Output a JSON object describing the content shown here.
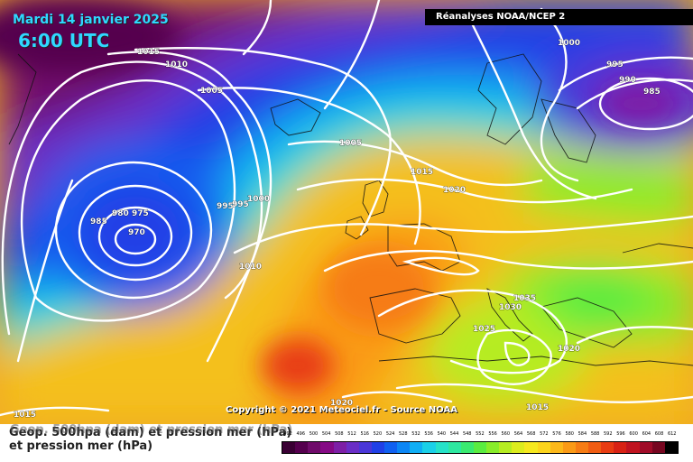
{
  "header": {
    "date": "Mardi 14 janvier 2025",
    "time": "6:00 UTC",
    "source": "Réanalyses NOAA/NCEP 2"
  },
  "footer": {
    "copyright": "Copyright © 2021 Meteociel.fr - Source NOAA",
    "legend_title_line1": "Geop. 500hpa (dam) et pression mer (hPa)",
    "legend_title_line2": "et pression mer (hPa)"
  },
  "map": {
    "variable_fill": "500 hPa geopotential (dam)",
    "contour_variable": "Sea level pressure (hPa)",
    "isobar_labels": [
      "1015",
      "1010",
      "1005",
      "1000",
      "995",
      "990",
      "985",
      "980",
      "975",
      "970",
      "985",
      "995",
      "995",
      "1000",
      "1010",
      "1005",
      "1015",
      "1020",
      "1035",
      "1030",
      "1025",
      "1020",
      "1015",
      "1020",
      "1015"
    ],
    "low_centers": [
      {
        "label": "970",
        "note": "deep low west of Ireland"
      },
      {
        "label": "985",
        "note": "low over Scandinavia"
      }
    ],
    "high_centers": [
      {
        "label": "1035",
        "note": "high over central Mediterranean / Italy"
      }
    ]
  },
  "legend": {
    "ticks": [
      "492",
      "496",
      "500",
      "504",
      "508",
      "512",
      "516",
      "520",
      "524",
      "528",
      "532",
      "536",
      "540",
      "544",
      "548",
      "552",
      "556",
      "560",
      "564",
      "568",
      "572",
      "576",
      "580",
      "584",
      "588",
      "592",
      "596",
      "600",
      "604",
      "608",
      "612"
    ],
    "colors": [
      "#3a0034",
      "#55004e",
      "#6f0b6a",
      "#850a85",
      "#7d1fa6",
      "#6a2ec6",
      "#4a37d8",
      "#2040e6",
      "#1060f0",
      "#0c86f4",
      "#10aef4",
      "#1ad0e8",
      "#26e2c8",
      "#2ee8a0",
      "#3aea70",
      "#5aec40",
      "#88ec2a",
      "#b6ec22",
      "#dcec1e",
      "#f6e81e",
      "#fcd41c",
      "#fcb81a",
      "#fa9a16",
      "#f67c14",
      "#f05c12",
      "#e83c12",
      "#d82214",
      "#c01420",
      "#a00c28",
      "#760620",
      "#000000"
    ]
  }
}
